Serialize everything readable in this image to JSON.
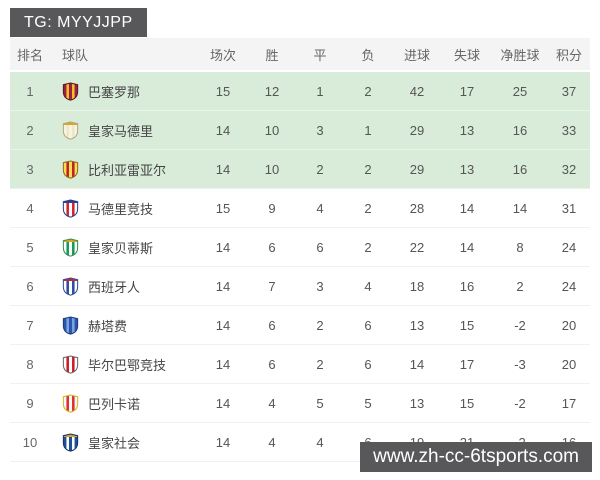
{
  "banners": {
    "top_tag": "TG: MYYJJPP",
    "site_url": "www.zh-cc-6tsports.com"
  },
  "colors": {
    "banner_gray": "#58585a",
    "header_bg": "#f4f4f5",
    "highlight_green": "#d9ecda",
    "row_border": "#f0f0f0",
    "text_gray": "#555555"
  },
  "table": {
    "headers": [
      "排名",
      "球队",
      "场次",
      "胜",
      "平",
      "负",
      "进球",
      "失球",
      "净胜球",
      "积分"
    ],
    "rows": [
      {
        "rank": "1",
        "team": "巴塞罗那",
        "played": "15",
        "wins": "12",
        "draws": "1",
        "losses": "2",
        "goals_for": "42",
        "goals_against": "17",
        "goal_diff": "25",
        "points": "37",
        "highlight": true,
        "logo_icon": "barcelona-crest-icon",
        "logo_colors": {
          "bg": "#9c2044",
          "stripe": "#f0c322",
          "border": "#5c1430"
        }
      },
      {
        "rank": "2",
        "team": "皇家马德里",
        "played": "14",
        "wins": "10",
        "draws": "3",
        "losses": "1",
        "goals_for": "29",
        "goals_against": "13",
        "goal_diff": "16",
        "points": "33",
        "highlight": true,
        "logo_icon": "real-madrid-crest-icon",
        "logo_colors": {
          "bg": "#f6f3e7",
          "stripe": "#efe6c8",
          "accent": "#d9a61e",
          "border": "#b3a677"
        }
      },
      {
        "rank": "3",
        "team": "比利亚雷亚尔",
        "played": "14",
        "wins": "10",
        "draws": "2",
        "losses": "2",
        "goals_for": "29",
        "goals_against": "13",
        "goal_diff": "16",
        "points": "32",
        "highlight": true,
        "logo_icon": "villarreal-crest-icon",
        "logo_colors": {
          "bg": "#ffdd4f",
          "stripe": "#bb2231",
          "border": "#8a6d1a"
        }
      },
      {
        "rank": "4",
        "team": "马德里竞技",
        "played": "15",
        "wins": "9",
        "draws": "4",
        "losses": "2",
        "goals_for": "28",
        "goals_against": "14",
        "goal_diff": "14",
        "points": "31",
        "highlight": false,
        "logo_icon": "atletico-madrid-crest-icon",
        "logo_colors": {
          "bg": "#ffffff",
          "stripe": "#d6212e",
          "accent": "#27408f",
          "border": "#27408f"
        }
      },
      {
        "rank": "5",
        "team": "皇家贝蒂斯",
        "played": "14",
        "wins": "6",
        "draws": "6",
        "losses": "2",
        "goals_for": "22",
        "goals_against": "14",
        "goal_diff": "8",
        "points": "24",
        "highlight": false,
        "logo_icon": "real-betis-crest-icon",
        "logo_colors": {
          "bg": "#ffffff",
          "stripe": "#129c55",
          "accent": "#d9a61e",
          "border": "#3d8a57"
        }
      },
      {
        "rank": "6",
        "team": "西班牙人",
        "played": "14",
        "wins": "7",
        "draws": "3",
        "losses": "4",
        "goals_for": "18",
        "goals_against": "16",
        "goal_diff": "2",
        "points": "24",
        "highlight": false,
        "logo_icon": "espanyol-crest-icon",
        "logo_colors": {
          "bg": "#ffffff",
          "stripe": "#2d4e9e",
          "accent": "#c62828",
          "border": "#2d4e9e"
        }
      },
      {
        "rank": "7",
        "team": "赫塔费",
        "played": "14",
        "wins": "6",
        "draws": "2",
        "losses": "6",
        "goals_for": "13",
        "goals_against": "15",
        "goal_diff": "-2",
        "points": "20",
        "highlight": false,
        "logo_icon": "getafe-crest-icon",
        "logo_colors": {
          "bg": "#2b56ae",
          "stripe": "#7da3e0",
          "border": "#1d3c7c"
        }
      },
      {
        "rank": "8",
        "team": "毕尔巴鄂竞技",
        "played": "14",
        "wins": "6",
        "draws": "2",
        "losses": "6",
        "goals_for": "14",
        "goals_against": "17",
        "goal_diff": "-3",
        "points": "20",
        "highlight": false,
        "logo_icon": "athletic-bilbao-crest-icon",
        "logo_colors": {
          "bg": "#ffffff",
          "stripe": "#d11a26",
          "border": "#666666"
        }
      },
      {
        "rank": "9",
        "team": "巴列卡诺",
        "played": "14",
        "wins": "4",
        "draws": "5",
        "losses": "5",
        "goals_for": "13",
        "goals_against": "15",
        "goal_diff": "-2",
        "points": "17",
        "highlight": false,
        "logo_icon": "rayo-vallecano-crest-icon",
        "logo_colors": {
          "bg": "#f7f7f7",
          "stripe": "#d93030",
          "border": "#d9b31a"
        }
      },
      {
        "rank": "10",
        "team": "皇家社会",
        "played": "14",
        "wins": "4",
        "draws": "4",
        "losses": "6",
        "goals_for": "19",
        "goals_against": "21",
        "goal_diff": "-2",
        "points": "16",
        "highlight": false,
        "logo_icon": "real-sociedad-crest-icon",
        "logo_colors": {
          "bg": "#1e4f9c",
          "stripe": "#ffffff",
          "accent": "#d9a61e",
          "border": "#143365"
        }
      }
    ]
  }
}
